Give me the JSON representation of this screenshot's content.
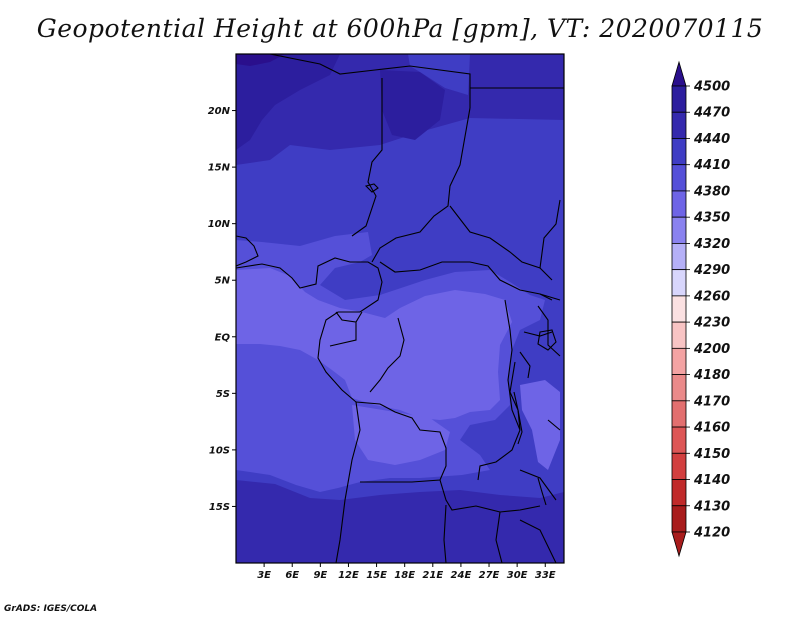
{
  "title": "Geopotential Height at 600hPa [gpm], VT: 2020070115",
  "credit": "GrADS: IGES/COLA",
  "map": {
    "lon_range": [
      0,
      35
    ],
    "lat_range": [
      -20,
      25
    ],
    "lat_ticks": [
      {
        "value": 20,
        "label": "20N"
      },
      {
        "value": 15,
        "label": "15N"
      },
      {
        "value": 10,
        "label": "10N"
      },
      {
        "value": 5,
        "label": "5N"
      },
      {
        "value": 0,
        "label": "EQ"
      },
      {
        "value": -5,
        "label": "5S"
      },
      {
        "value": -10,
        "label": "10S"
      },
      {
        "value": -15,
        "label": "15S"
      }
    ],
    "lon_ticks": [
      {
        "value": 3,
        "label": "3E"
      },
      {
        "value": 6,
        "label": "6E"
      },
      {
        "value": 9,
        "label": "9E"
      },
      {
        "value": 12,
        "label": "12E"
      },
      {
        "value": 15,
        "label": "15E"
      },
      {
        "value": 18,
        "label": "18E"
      },
      {
        "value": 21,
        "label": "21E"
      },
      {
        "value": 24,
        "label": "24E"
      },
      {
        "value": 27,
        "label": "27E"
      },
      {
        "value": 30,
        "label": "30E"
      },
      {
        "value": 33,
        "label": "33E"
      }
    ]
  },
  "colorbar": {
    "levels": [
      {
        "label": "4500",
        "color": "#2a0f8c"
      },
      {
        "label": "4470",
        "color": "#2c1e9e"
      },
      {
        "label": "4440",
        "color": "#3429ad"
      },
      {
        "label": "4410",
        "color": "#3f3dc4"
      },
      {
        "label": "4380",
        "color": "#5550d8"
      },
      {
        "label": "4350",
        "color": "#6e64e6"
      },
      {
        "label": "4320",
        "color": "#8a82ef"
      },
      {
        "label": "4290",
        "color": "#b5b0f7"
      },
      {
        "label": "4260",
        "color": "#d8d6fc"
      },
      {
        "label": "4230",
        "color": "#fbe1e2"
      },
      {
        "label": "4200",
        "color": "#f8c4c4"
      },
      {
        "label": "4180",
        "color": "#f3a3a3"
      },
      {
        "label": "4170",
        "color": "#ea8a8a"
      },
      {
        "label": "4160",
        "color": "#e26f6f"
      },
      {
        "label": "4150",
        "color": "#dd5656"
      },
      {
        "label": "4140",
        "color": "#d23f3f"
      },
      {
        "label": "4130",
        "color": "#c02a2a"
      },
      {
        "label": "4120",
        "color": "#a81c1c"
      }
    ],
    "top_color": "#2a0f8c",
    "bottom_color": "#a81c1c"
  }
}
